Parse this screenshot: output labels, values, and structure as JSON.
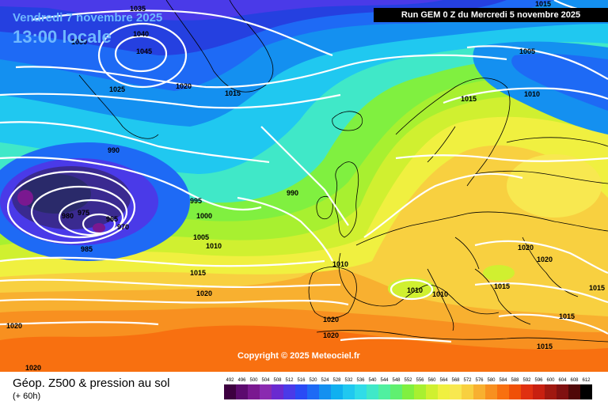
{
  "header": {
    "valid_date": "Vendredi 7 novembre 2025",
    "local_time": "13:00 locale",
    "run_info": "Run GEM 0 Z du Mercredi 5 novembre 2025"
  },
  "copyright": "Copyright © 2025 Meteociel.fr",
  "footer": {
    "product": "Géop. Z500 & pression au sol",
    "lead": "(+ 60h)"
  },
  "legend": {
    "labels": [
      "492",
      "496",
      "500",
      "504",
      "508",
      "512",
      "516",
      "520",
      "524",
      "528",
      "532",
      "536",
      "540",
      "544",
      "548",
      "552",
      "556",
      "560",
      "564",
      "568",
      "572",
      "576",
      "580",
      "584",
      "588",
      "592",
      "596",
      "600",
      "604",
      "608",
      "612"
    ],
    "colors": [
      "#3d0040",
      "#5c0a6e",
      "#7a1890",
      "#8a2ab0",
      "#6a2ad0",
      "#4a3ae8",
      "#2a4af5",
      "#1e6af5",
      "#1490f0",
      "#10b0f0",
      "#20c8f0",
      "#30dce8",
      "#40e8c8",
      "#50f0a0",
      "#60f070",
      "#80f040",
      "#a8f030",
      "#d0f030",
      "#f0f040",
      "#f8e850",
      "#f8d040",
      "#f8b030",
      "#f89020",
      "#f87010",
      "#f05008",
      "#e03010",
      "#c82010",
      "#a01810",
      "#801010",
      "#500808",
      "#000000"
    ]
  },
  "isobar_labels": [
    "1035",
    "1040",
    "1030",
    "1045",
    "1025",
    "1020",
    "1015",
    "990",
    "995",
    "980",
    "975",
    "965",
    "970",
    "985",
    "1000",
    "1005",
    "1010",
    "1015",
    "1020",
    "990",
    "1010",
    "1020",
    "1005",
    "1015",
    "1010",
    "1020",
    "1020",
    "1010",
    "1010",
    "1015",
    "1015",
    "1015",
    "1015",
    "1020",
    "1020"
  ],
  "map_colors": {
    "background_north": "#2540e0",
    "low_core": "#2a2a6a"
  }
}
